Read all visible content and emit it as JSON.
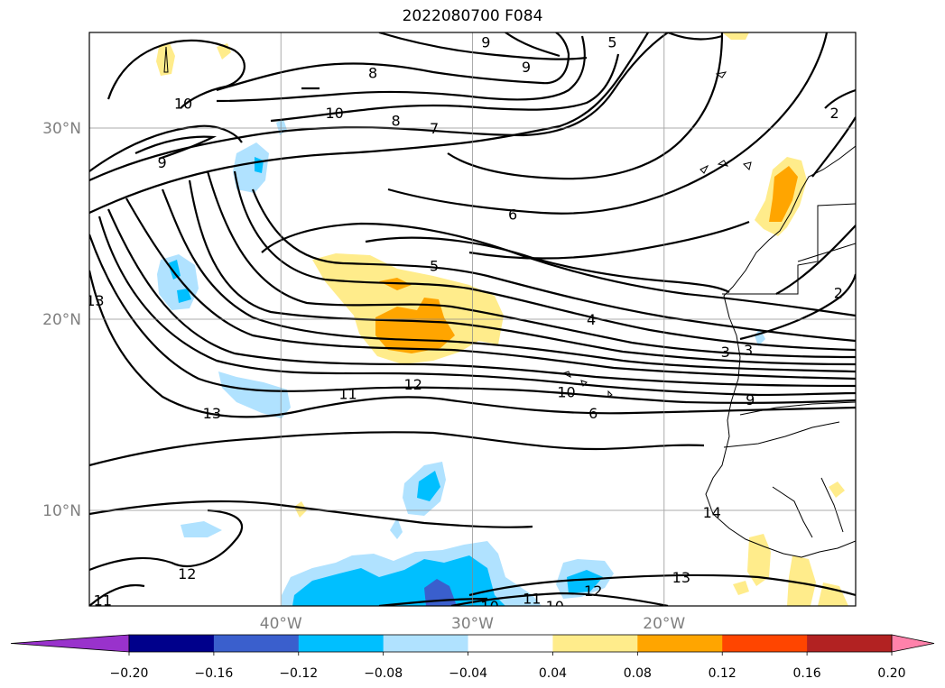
{
  "title": "2022080700 F084",
  "axes": {
    "lon_ticks": [
      {
        "lon": -40,
        "label": "40°W"
      },
      {
        "lon": -30,
        "label": "30°W"
      },
      {
        "lon": -20,
        "label": "20°W"
      }
    ],
    "lat_ticks": [
      {
        "lat": 30,
        "label": "30°N"
      },
      {
        "lat": 20,
        "label": "20°N"
      },
      {
        "lat": 10,
        "label": "10°N"
      }
    ],
    "extent": {
      "lon_min": -50,
      "lon_max": -10,
      "lat_min": 5,
      "lat_max": 35
    },
    "grid": true
  },
  "colorbar": {
    "levels": [
      "-0.20",
      "-0.16",
      "-0.12",
      "-0.08",
      "-0.04",
      "0.04",
      "0.08",
      "0.12",
      "0.16",
      "0.20"
    ],
    "colors": [
      "#9932cc",
      "#00008b",
      "#3a5fcd",
      "#00bfff",
      "#b0e2ff",
      "#ffffff",
      "#ffec8b",
      "#ffa500",
      "#ff4500",
      "#b22222",
      "#ff82ab"
    ],
    "extend": "both"
  },
  "contours": {
    "labels": [
      {
        "text": "8",
        "lon": -35.2,
        "lat": 32.9
      },
      {
        "text": "9",
        "lon": -27.2,
        "lat": 33.2
      },
      {
        "text": "9",
        "lon": -29.3,
        "lat": 34.5
      },
      {
        "text": "5",
        "lon": -22.7,
        "lat": 34.5
      },
      {
        "text": "10",
        "lon": -45.1,
        "lat": 31.3
      },
      {
        "text": "10",
        "lon": -37.2,
        "lat": 30.8
      },
      {
        "text": "8",
        "lon": -34.0,
        "lat": 30.4
      },
      {
        "text": "7",
        "lon": -32.0,
        "lat": 30.0
      },
      {
        "text": "9",
        "lon": -46.2,
        "lat": 28.2
      },
      {
        "text": "6",
        "lon": -27.9,
        "lat": 25.5
      },
      {
        "text": "5",
        "lon": -32.0,
        "lat": 22.8
      },
      {
        "text": "13",
        "lon": -49.7,
        "lat": 21.0
      },
      {
        "text": "4",
        "lon": -23.8,
        "lat": 20.0
      },
      {
        "text": "3",
        "lon": -16.8,
        "lat": 18.3
      },
      {
        "text": "3",
        "lon": -15.6,
        "lat": 18.4
      },
      {
        "text": "2",
        "lon": -10.9,
        "lat": 21.4
      },
      {
        "text": "2",
        "lon": -11.1,
        "lat": 30.8
      },
      {
        "text": "11",
        "lon": -36.5,
        "lat": 16.1
      },
      {
        "text": "12",
        "lon": -33.1,
        "lat": 16.6
      },
      {
        "text": "10",
        "lon": -25.1,
        "lat": 16.2
      },
      {
        "text": "6",
        "lon": -23.7,
        "lat": 15.1
      },
      {
        "text": "9",
        "lon": -15.5,
        "lat": 15.8
      },
      {
        "text": "13",
        "lon": -43.6,
        "lat": 15.1
      },
      {
        "text": "14",
        "lon": -17.5,
        "lat": 9.9
      },
      {
        "text": "12",
        "lon": -44.9,
        "lat": 6.7
      },
      {
        "text": "11",
        "lon": -49.3,
        "lat": 5.3
      },
      {
        "text": "13",
        "lon": -19.1,
        "lat": 6.5
      },
      {
        "text": "12",
        "lon": -23.7,
        "lat": 5.8
      },
      {
        "text": "11",
        "lon": -26.9,
        "lat": 5.4
      },
      {
        "text": "10",
        "lon": -25.7,
        "lat": 5.0
      },
      {
        "text": "10",
        "lon": -29.1,
        "lat": 5.0
      }
    ]
  }
}
